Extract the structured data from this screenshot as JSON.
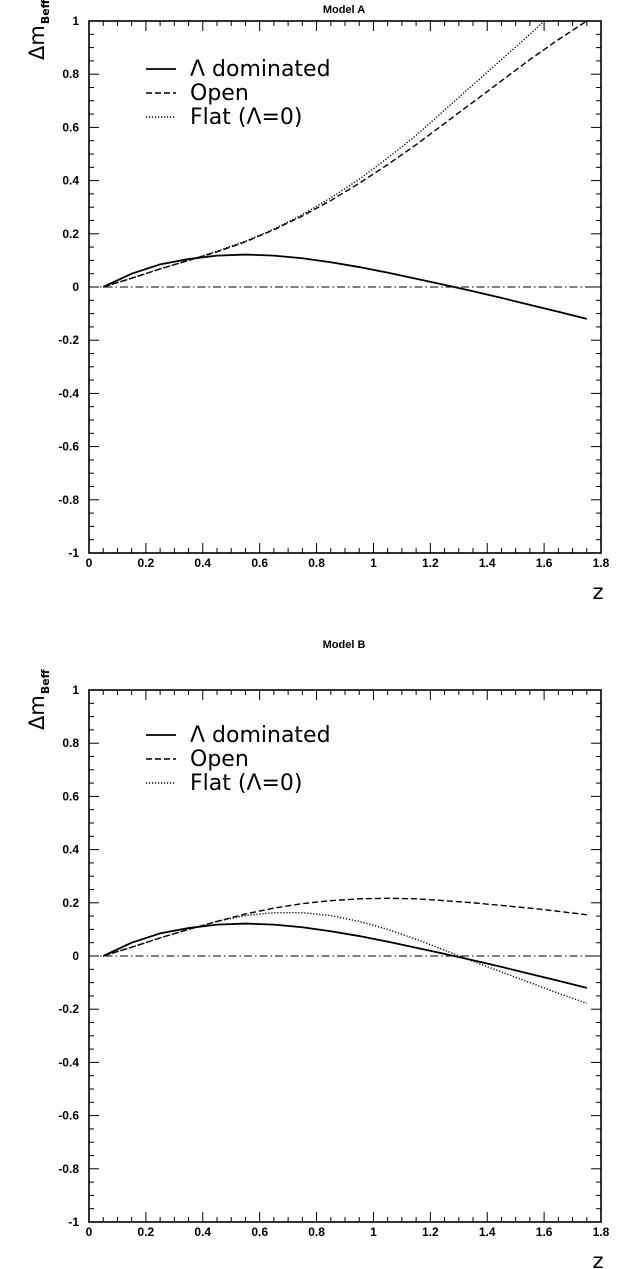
{
  "chart_data": [
    {
      "type": "line",
      "title": "Model A",
      "xlabel": "z",
      "ylabel": "Δm",
      "ylabel_sub": "Beff",
      "xlim": [
        0,
        1.8
      ],
      "ylim": [
        -1,
        1
      ],
      "xticks": [
        "0",
        "0.2",
        "0.4",
        "0.6",
        "0.8",
        "1",
        "1.2",
        "1.4",
        "1.6",
        "1.8"
      ],
      "yticks": [
        "-1",
        "-0.8",
        "-0.6",
        "-0.4",
        "-0.2",
        "0",
        "0.2",
        "0.4",
        "0.6",
        "0.8",
        "1"
      ],
      "reference_line": {
        "y": 0,
        "style": "dashdot"
      },
      "legend_position": "top-left",
      "series": [
        {
          "name": "Λ dominated",
          "style": "solid",
          "x": [
            0.05,
            0.15,
            0.25,
            0.35,
            0.45,
            0.55,
            0.65,
            0.75,
            0.85,
            0.95,
            1.05,
            1.15,
            1.25,
            1.35,
            1.45,
            1.55,
            1.65,
            1.75
          ],
          "y": [
            0.0,
            0.05,
            0.085,
            0.105,
            0.118,
            0.122,
            0.118,
            0.108,
            0.093,
            0.075,
            0.054,
            0.031,
            0.008,
            -0.016,
            -0.041,
            -0.067,
            -0.093,
            -0.12
          ]
        },
        {
          "name": "Open",
          "style": "dashed",
          "x": [
            0.05,
            0.15,
            0.25,
            0.35,
            0.45,
            0.55,
            0.65,
            0.75,
            0.85,
            0.95,
            1.05,
            1.15,
            1.25,
            1.35,
            1.45,
            1.55,
            1.65,
            1.75
          ],
          "y": [
            0.0,
            0.033,
            0.068,
            0.1,
            0.132,
            0.17,
            0.215,
            0.267,
            0.325,
            0.39,
            0.46,
            0.535,
            0.615,
            0.695,
            0.775,
            0.855,
            0.93,
            1.0
          ]
        },
        {
          "name": "Flat (Λ=0)",
          "style": "dotted",
          "x": [
            0.05,
            0.15,
            0.25,
            0.35,
            0.45,
            0.55,
            0.65,
            0.75,
            0.85,
            0.95,
            1.05,
            1.15,
            1.25,
            1.35,
            1.45,
            1.55,
            1.6
          ],
          "y": [
            0.0,
            0.033,
            0.068,
            0.1,
            0.135,
            0.172,
            0.218,
            0.272,
            0.335,
            0.405,
            0.485,
            0.57,
            0.665,
            0.76,
            0.855,
            0.95,
            1.0
          ]
        }
      ]
    },
    {
      "type": "line",
      "title": "Model B",
      "xlabel": "z",
      "ylabel": "Δm",
      "ylabel_sub": "Beff",
      "xlim": [
        0,
        1.8
      ],
      "ylim": [
        -1,
        1
      ],
      "xticks": [
        "0",
        "0.2",
        "0.4",
        "0.6",
        "0.8",
        "1",
        "1.2",
        "1.4",
        "1.6",
        "1.8"
      ],
      "yticks": [
        "-1",
        "-0.8",
        "-0.6",
        "-0.4",
        "-0.2",
        "0",
        "0.2",
        "0.4",
        "0.6",
        "0.8",
        "1"
      ],
      "reference_line": {
        "y": 0,
        "style": "dashdot"
      },
      "legend_position": "top-left",
      "series": [
        {
          "name": "Λ dominated",
          "style": "solid",
          "x": [
            0.05,
            0.15,
            0.25,
            0.35,
            0.45,
            0.55,
            0.65,
            0.75,
            0.85,
            0.95,
            1.05,
            1.15,
            1.25,
            1.35,
            1.45,
            1.55,
            1.65,
            1.75
          ],
          "y": [
            0.0,
            0.05,
            0.085,
            0.105,
            0.118,
            0.122,
            0.118,
            0.108,
            0.093,
            0.075,
            0.054,
            0.031,
            0.008,
            -0.016,
            -0.041,
            -0.067,
            -0.093,
            -0.12
          ]
        },
        {
          "name": "Open",
          "style": "dashed",
          "x": [
            0.05,
            0.15,
            0.25,
            0.35,
            0.45,
            0.55,
            0.65,
            0.75,
            0.85,
            0.95,
            1.05,
            1.15,
            1.25,
            1.35,
            1.45,
            1.55,
            1.65,
            1.75
          ],
          "y": [
            0.0,
            0.033,
            0.068,
            0.1,
            0.13,
            0.158,
            0.18,
            0.197,
            0.208,
            0.215,
            0.217,
            0.215,
            0.208,
            0.2,
            0.19,
            0.18,
            0.168,
            0.155
          ]
        },
        {
          "name": "Flat (Λ=0)",
          "style": "dotted",
          "x": [
            0.05,
            0.15,
            0.25,
            0.35,
            0.45,
            0.55,
            0.65,
            0.75,
            0.85,
            0.95,
            1.05,
            1.15,
            1.25,
            1.35,
            1.45,
            1.55,
            1.65,
            1.75
          ],
          "y": [
            0.0,
            0.033,
            0.068,
            0.1,
            0.13,
            0.152,
            0.163,
            0.163,
            0.152,
            0.13,
            0.1,
            0.063,
            0.022,
            -0.02,
            -0.06,
            -0.1,
            -0.14,
            -0.178
          ]
        }
      ]
    }
  ]
}
